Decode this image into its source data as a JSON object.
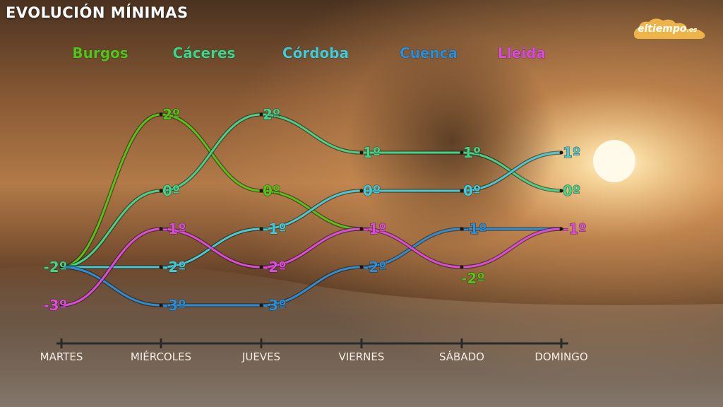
{
  "title": "EVOLUCIÓN MÍNIMAS",
  "logo": {
    "name": "eltiempo",
    "suffix": ".es"
  },
  "colors": {
    "axis": "#2a2a2a",
    "day_label": "#f4ece4",
    "Burgos": "#53c41c",
    "Cáceres": "#3ed68c",
    "Córdoba": "#43cbd7",
    "Cuenca": "#2a8fd8",
    "Lleida": "#dc4be0"
  },
  "chart_data": {
    "type": "line",
    "title": "EVOLUCIÓN MÍNIMAS",
    "categories": [
      "MARTES",
      "MIÉRCOLES",
      "JUEVES",
      "VIERNES",
      "SÁBADO",
      "DOMINGO"
    ],
    "unit": "º",
    "ylim": [
      -3,
      2
    ],
    "grid": false,
    "legend_position": "top",
    "series": [
      {
        "name": "Burgos",
        "values": [
          -2,
          2,
          0,
          -1,
          null,
          null
        ],
        "labels": [
          null,
          "2º",
          "0º",
          null,
          null,
          null
        ]
      },
      {
        "name": "Cáceres",
        "values": [
          -2,
          0,
          2,
          1,
          1,
          0
        ],
        "labels": [
          "-2º",
          "0º",
          "2º",
          "1º",
          "1º",
          "0º"
        ]
      },
      {
        "name": "Córdoba",
        "values": [
          -2,
          -2,
          -1,
          0,
          0,
          1
        ],
        "labels": [
          null,
          "-2º",
          "-1º",
          "0º",
          "0º",
          "1º"
        ]
      },
      {
        "name": "Cuenca",
        "values": [
          -2,
          -3,
          -3,
          -2,
          -1,
          -1
        ],
        "labels": [
          null,
          "-3º",
          "-3º",
          "-2º",
          "-1º",
          null
        ]
      },
      {
        "name": "Lleida",
        "values": [
          -3,
          -1,
          -2,
          -1,
          -2,
          -1
        ],
        "labels": [
          "-3º",
          "-1º",
          "-2º",
          "-1º",
          null,
          "-1º"
        ]
      }
    ],
    "extra_labels": [
      {
        "series": "Burgos",
        "text": "-2º",
        "day": "SÁBADO",
        "value": -2
      }
    ]
  }
}
